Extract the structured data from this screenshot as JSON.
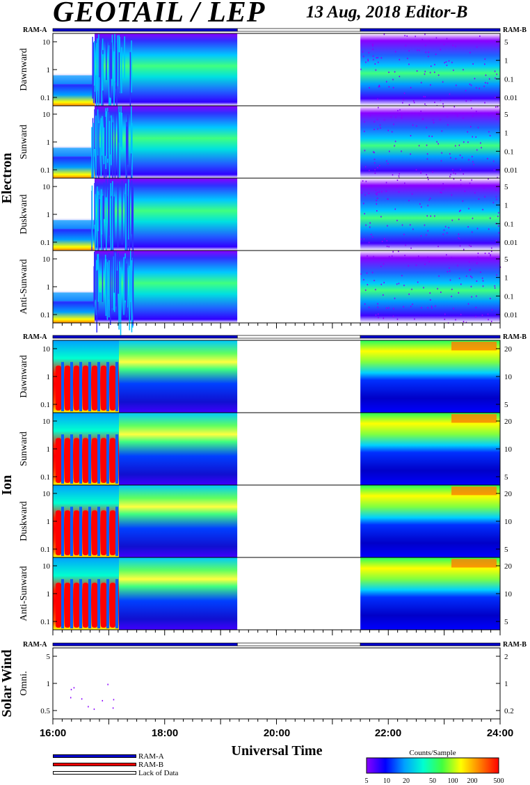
{
  "header": {
    "title": "GEOTAIL / LEP",
    "subtitle": "13 Aug, 2018   Editor-B"
  },
  "chart_data": {
    "type": "heatmap",
    "x_axis": {
      "label": "Universal Time",
      "ticks": [
        "16:00",
        "18:00",
        "20:00",
        "22:00",
        "24:00"
      ],
      "range_hours": [
        16,
        24
      ]
    },
    "data_gap_hours": [
      19.3,
      21.5
    ],
    "mode_bar": {
      "left_label": "RAM-A",
      "right_label": "RAM-B",
      "segments": [
        {
          "start": 16.0,
          "end": 19.3,
          "mode": "RAM-A"
        },
        {
          "start": 19.3,
          "end": 21.5,
          "mode": "Lack of Data"
        },
        {
          "start": 21.5,
          "end": 24.0,
          "mode": "RAM-A"
        }
      ]
    },
    "groups": [
      {
        "name": "Electron",
        "left_ticks": [
          "10",
          "1",
          "0.1"
        ],
        "right_ticks": [
          "5",
          "1",
          "0.1",
          "0.01"
        ],
        "panels": [
          "Dawnward",
          "Sunward",
          "Duskward",
          "Anti-Sunward"
        ]
      },
      {
        "name": "Ion",
        "left_ticks": [
          "10",
          "1",
          "0.1"
        ],
        "right_ticks": [
          "20",
          "10",
          "5"
        ],
        "panels": [
          "Dawnward",
          "Sunward",
          "Duskward",
          "Anti-Sunward"
        ]
      },
      {
        "name": "Solar Wind",
        "left_ticks": [
          "5",
          "1",
          "0.5"
        ],
        "right_ticks": [
          "2",
          "1",
          "0.2"
        ],
        "panels": [
          "Omni."
        ]
      }
    ],
    "colorbar": {
      "title": "Counts/Sample",
      "ticks": [
        "5",
        "10",
        "20",
        "50",
        "100",
        "200",
        "500"
      ],
      "colors": [
        "#8a00ff",
        "#0000ff",
        "#00a0ff",
        "#00ffd0",
        "#40ff40",
        "#ffff00",
        "#ff8000",
        "#ff0000"
      ]
    },
    "legend": [
      {
        "label": "RAM-A",
        "color": "#0000cc"
      },
      {
        "label": "RAM-B",
        "color": "#ff0000"
      },
      {
        "label": "Lack of Data",
        "color": "#ffffff"
      }
    ]
  }
}
